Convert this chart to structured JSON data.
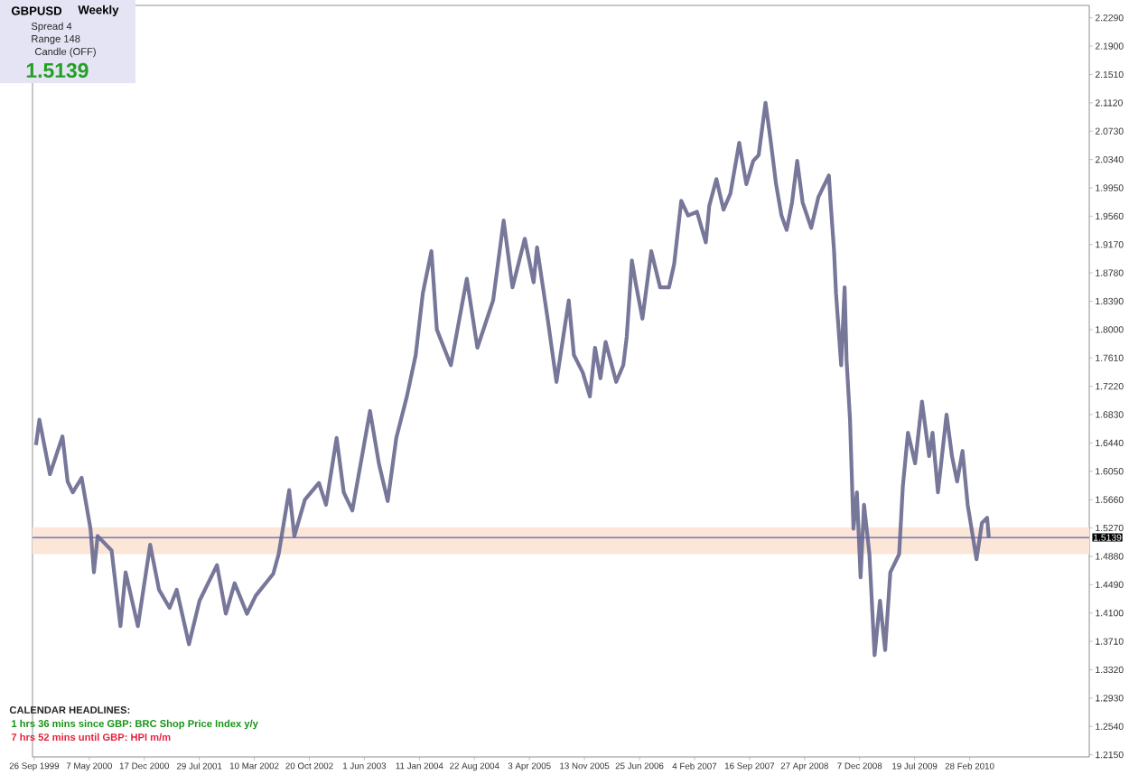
{
  "chart_data": {
    "type": "line",
    "title": "GBPUSD",
    "subtitle": "Weekly",
    "annotations": [
      "Spread 4",
      "Range 148",
      "Candle (OFF)",
      "1.5139",
      "CALENDAR HEADLINES:",
      "1 hrs 36 mins since GBP: BRC Shop Price Index y/y",
      "7 hrs 52 mins until GBP: HPI m/m"
    ],
    "color": "#77779a",
    "x": [
      "1999-10-03",
      "1999-10-17",
      "1999-11-29",
      "2000-01-19",
      "2000-02-09",
      "2000-03-01",
      "2000-04-06",
      "2000-05-12",
      "2000-05-26",
      "2000-06-10",
      "2000-08-06",
      "2000-09-11",
      "2000-10-02",
      "2000-11-21",
      "2001-01-10",
      "2001-02-15",
      "2001-03-30",
      "2001-04-28",
      "2001-06-17",
      "2001-07-30",
      "2001-10-09",
      "2001-11-14",
      "2001-12-20",
      "2002-02-08",
      "2002-03-16",
      "2002-05-26",
      "2002-06-17",
      "2002-07-08",
      "2002-07-30",
      "2002-08-20",
      "2002-10-02",
      "2002-11-28",
      "2002-12-27",
      "2003-02-08",
      "2003-03-09",
      "2003-04-13",
      "2003-06-24",
      "2003-07-30",
      "2003-09-04",
      "2003-10-09",
      "2003-11-21",
      "2003-12-27",
      "2004-01-25",
      "2004-02-29",
      "2004-03-22",
      "2004-05-18",
      "2004-07-22",
      "2004-09-03",
      "2004-11-06",
      "2004-12-19",
      "2005-01-24",
      "2005-03-15",
      "2005-04-20",
      "2005-05-04",
      "2005-06-16",
      "2005-07-22",
      "2005-09-10",
      "2005-10-01",
      "2005-11-06",
      "2005-12-05",
      "2005-12-26",
      "2006-01-17",
      "2006-02-07",
      "2006-03-22",
      "2006-04-20",
      "2006-05-04",
      "2006-05-25",
      "2006-06-09",
      "2006-07-07",
      "2006-08-12",
      "2006-09-17",
      "2006-10-23",
      "2006-11-13",
      "2006-12-12",
      "2007-01-09",
      "2007-02-14",
      "2007-03-22",
      "2007-04-05",
      "2007-05-04",
      "2007-06-02",
      "2007-06-30",
      "2007-08-05",
      "2007-09-03",
      "2007-10-01",
      "2007-10-23",
      "2007-11-20",
      "2007-12-12",
      "2008-01-02",
      "2008-01-24",
      "2008-02-14",
      "2008-03-07",
      "2008-03-28",
      "2008-04-19",
      "2008-05-24",
      "2008-06-22",
      "2008-08-04",
      "2008-08-11",
      "2008-08-25",
      "2008-09-02",
      "2008-09-23",
      "2008-10-07",
      "2008-10-15",
      "2008-10-29",
      "2008-11-12",
      "2008-11-26",
      "2008-12-11",
      "2008-12-25",
      "2009-01-16",
      "2009-02-06",
      "2009-02-28",
      "2009-03-21",
      "2009-04-11",
      "2009-05-17",
      "2009-06-01",
      "2009-06-22",
      "2009-07-21",
      "2009-08-18",
      "2009-09-16",
      "2009-09-30",
      "2009-10-22",
      "2009-11-26",
      "2009-12-18",
      "2010-01-08",
      "2010-01-30",
      "2010-02-20",
      "2010-03-28",
      "2010-04-19",
      "2010-05-10",
      "2010-05-17"
    ],
    "values": [
      1.641,
      1.676,
      1.601,
      1.653,
      1.591,
      1.576,
      1.596,
      1.526,
      1.466,
      1.516,
      1.496,
      1.392,
      1.466,
      1.392,
      1.504,
      1.442,
      1.417,
      1.442,
      1.367,
      1.427,
      1.476,
      1.409,
      1.451,
      1.409,
      1.434,
      1.464,
      1.491,
      1.534,
      1.579,
      1.516,
      1.566,
      1.589,
      1.559,
      1.651,
      1.576,
      1.551,
      1.688,
      1.616,
      1.564,
      1.651,
      1.708,
      1.765,
      1.85,
      1.908,
      1.8,
      1.751,
      1.87,
      1.775,
      1.84,
      1.95,
      1.858,
      1.925,
      1.865,
      1.913,
      1.815,
      1.728,
      1.84,
      1.765,
      1.741,
      1.708,
      1.775,
      1.733,
      1.783,
      1.728,
      1.751,
      1.79,
      1.895,
      1.865,
      1.815,
      1.908,
      1.858,
      1.858,
      1.89,
      1.977,
      1.957,
      1.962,
      1.92,
      1.97,
      2.007,
      1.965,
      1.987,
      2.057,
      2.0,
      2.032,
      2.04,
      2.112,
      2.057,
      2.0,
      1.957,
      1.937,
      1.975,
      2.032,
      1.975,
      1.94,
      1.982,
      2.012,
      1.975,
      1.908,
      1.85,
      1.751,
      1.858,
      1.758,
      1.676,
      1.526,
      1.576,
      1.459,
      1.559,
      1.491,
      1.352,
      1.427,
      1.359,
      1.466,
      1.491,
      1.584,
      1.658,
      1.616,
      1.701,
      1.626,
      1.658,
      1.576,
      1.683,
      1.626,
      1.591,
      1.633,
      1.559,
      1.484,
      1.534,
      1.541,
      1.514
    ],
    "xlim": [
      "1999-09-19",
      "2011-06-30"
    ],
    "xticks": [
      {
        "value": "1999-09-26",
        "label": "26 Sep 1999"
      },
      {
        "value": "2000-05-07",
        "label": "7 May 2000"
      },
      {
        "value": "2000-12-17",
        "label": "17 Dec 2000"
      },
      {
        "value": "2001-07-29",
        "label": "29 Jul 2001"
      },
      {
        "value": "2002-03-10",
        "label": "10 Mar 2002"
      },
      {
        "value": "2002-10-20",
        "label": "20 Oct 2002"
      },
      {
        "value": "2003-06-01",
        "label": "1 Jun 2003"
      },
      {
        "value": "2004-01-11",
        "label": "11 Jan 2004"
      },
      {
        "value": "2004-08-22",
        "label": "22 Aug 2004"
      },
      {
        "value": "2005-04-03",
        "label": "3 Apr 2005"
      },
      {
        "value": "2005-11-13",
        "label": "13 Nov 2005"
      },
      {
        "value": "2006-06-25",
        "label": "25 Jun 2006"
      },
      {
        "value": "2007-02-04",
        "label": "4 Feb 2007"
      },
      {
        "value": "2007-09-16",
        "label": "16 Sep 2007"
      },
      {
        "value": "2008-04-27",
        "label": "27 Apr 2008"
      },
      {
        "value": "2008-12-07",
        "label": "7 Dec 2008"
      },
      {
        "value": "2009-07-19",
        "label": "19 Jul 2009"
      },
      {
        "value": "2010-02-28",
        "label": "28 Feb 2010"
      }
    ],
    "ylim": [
      1.212,
      2.246
    ],
    "yticks": [
      {
        "value": 2.229,
        "label": "2.2290"
      },
      {
        "value": 2.19,
        "label": "2.1900"
      },
      {
        "value": 2.151,
        "label": "2.1510"
      },
      {
        "value": 2.112,
        "label": "2.1120"
      },
      {
        "value": 2.073,
        "label": "2.0730"
      },
      {
        "value": 2.034,
        "label": "2.0340"
      },
      {
        "value": 1.995,
        "label": "1.9950"
      },
      {
        "value": 1.956,
        "label": "1.9560"
      },
      {
        "value": 1.917,
        "label": "1.9170"
      },
      {
        "value": 1.878,
        "label": "1.8780"
      },
      {
        "value": 1.839,
        "label": "1.8390"
      },
      {
        "value": 1.8,
        "label": "1.8000"
      },
      {
        "value": 1.761,
        "label": "1.7610"
      },
      {
        "value": 1.722,
        "label": "1.7220"
      },
      {
        "value": 1.683,
        "label": "1.6830"
      },
      {
        "value": 1.644,
        "label": "1.6440"
      },
      {
        "value": 1.605,
        "label": "1.6050"
      },
      {
        "value": 1.566,
        "label": "1.5660"
      },
      {
        "value": 1.527,
        "label": "1.5270"
      },
      {
        "value": 1.488,
        "label": "1.4880"
      },
      {
        "value": 1.449,
        "label": "1.4490"
      },
      {
        "value": 1.41,
        "label": "1.4100"
      },
      {
        "value": 1.371,
        "label": "1.3710"
      },
      {
        "value": 1.332,
        "label": "1.3320"
      },
      {
        "value": 1.293,
        "label": "1.2930"
      },
      {
        "value": 1.254,
        "label": "1.2540"
      },
      {
        "value": 1.215,
        "label": "1.2150"
      }
    ],
    "ref_lines": [
      {
        "axis": "y",
        "value": 1.5139,
        "label": "1.5139",
        "color": "#5c5ca8"
      }
    ],
    "bands": [
      {
        "axis": "y",
        "from": 1.491,
        "to": 1.528,
        "color": "#fbe6d8"
      }
    ]
  }
}
